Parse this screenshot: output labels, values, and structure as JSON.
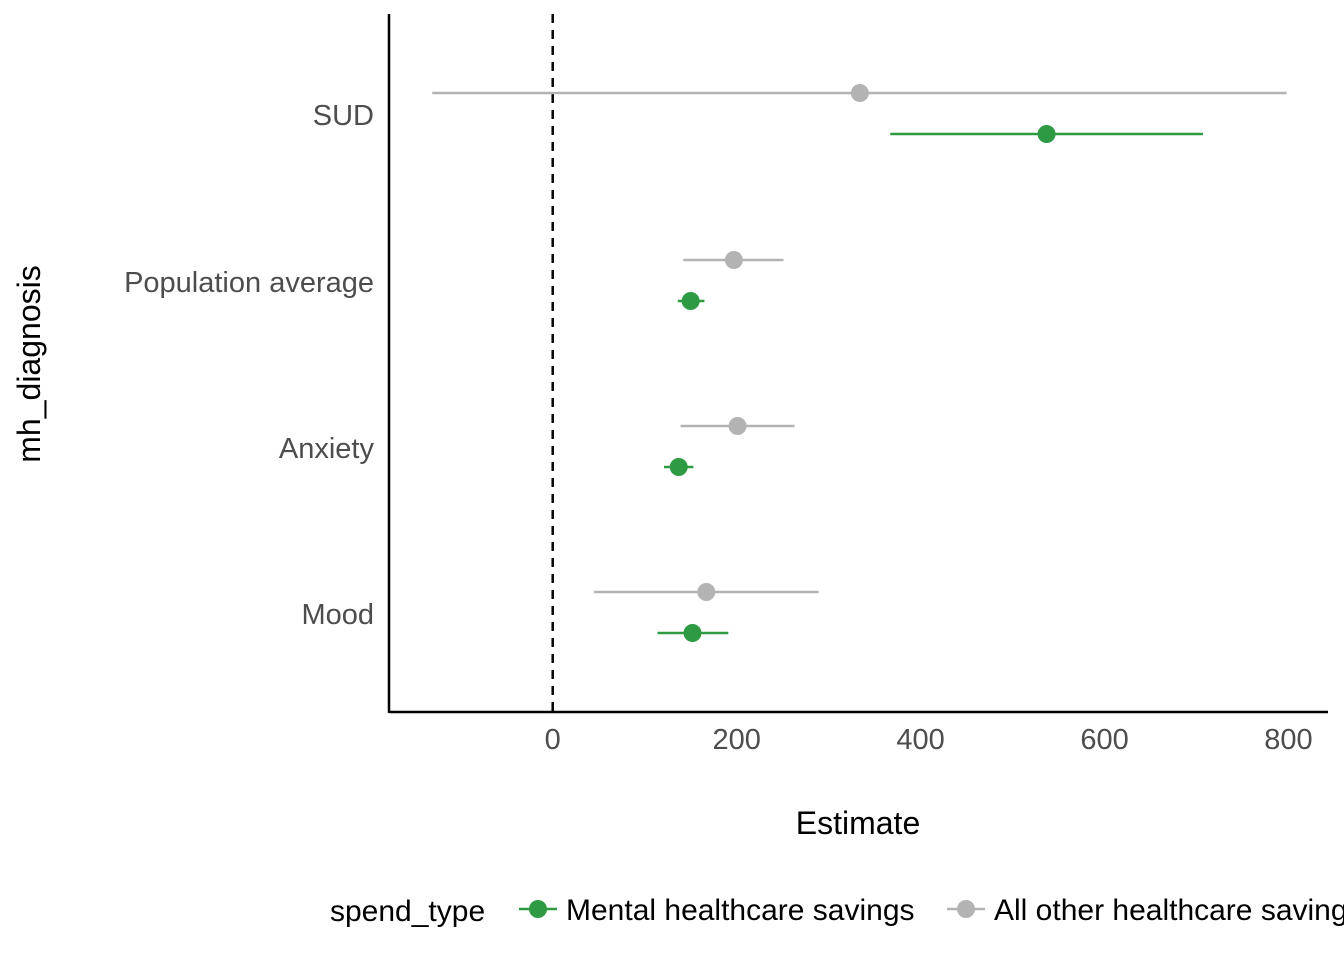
{
  "chart_data": {
    "type": "scatter",
    "orientation": "horizontal",
    "xlabel": "Estimate",
    "ylabel": "mh_diagnosis",
    "xlim": [
      -178,
      843
    ],
    "x_ticks": [
      0,
      200,
      400,
      600,
      800
    ],
    "x_tick_labels": [
      "0",
      "200",
      "400",
      "600",
      "800"
    ],
    "categories": [
      "Mood",
      "Anxiety",
      "Population average",
      "SUD"
    ],
    "reference_line": {
      "x": 0,
      "style": "dashed"
    },
    "grid": false,
    "legend": {
      "title": "spend_type",
      "position": "bottom"
    },
    "series": [
      {
        "name": "Mental healthcare savings",
        "color": "#2e9b44",
        "points": [
          {
            "category": "Mood",
            "estimate": 152,
            "low": 114,
            "high": 191
          },
          {
            "category": "Anxiety",
            "estimate": 137,
            "low": 121,
            "high": 153
          },
          {
            "category": "Population average",
            "estimate": 150,
            "low": 136,
            "high": 165
          },
          {
            "category": "SUD",
            "estimate": 537,
            "low": 367,
            "high": 707
          }
        ]
      },
      {
        "name": "All other healthcare savings",
        "color": "#b3b3b3",
        "points": [
          {
            "category": "Mood",
            "estimate": 167,
            "low": 45,
            "high": 289
          },
          {
            "category": "Anxiety",
            "estimate": 201,
            "low": 139,
            "high": 263
          },
          {
            "category": "Population average",
            "estimate": 197,
            "low": 142,
            "high": 251
          },
          {
            "category": "SUD",
            "estimate": 334,
            "low": -131,
            "high": 798
          }
        ]
      }
    ]
  }
}
